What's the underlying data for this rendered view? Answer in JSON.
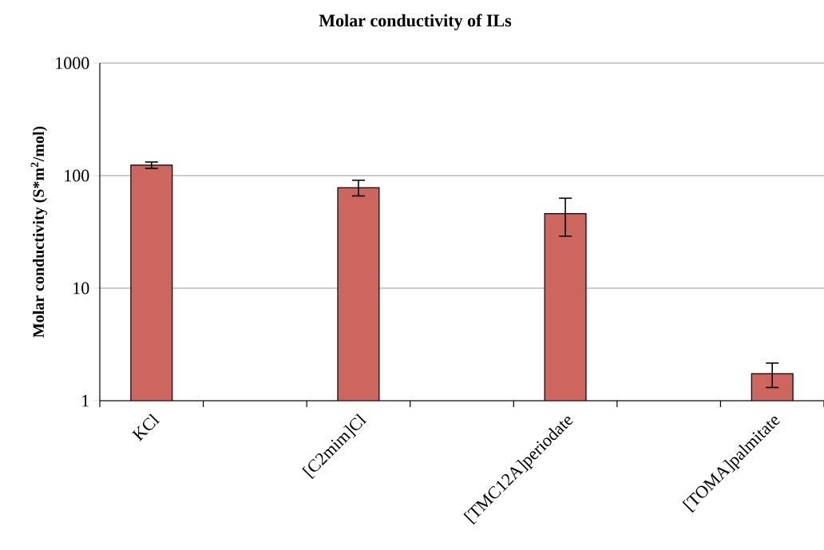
{
  "chart_data": {
    "type": "bar",
    "title": "Molar conductivity of ILs",
    "ylabel": "Molar conductivity (S*m$^{2}$/mol)",
    "categories": [
      "KCl",
      null,
      "[C2mim]Cl",
      null,
      "[TMC12A]periodate",
      null,
      "[TOMA]palmitate"
    ],
    "values": [
      124,
      null,
      78,
      null,
      46,
      null,
      1.74
    ],
    "errors": [
      [
        116,
        132
      ],
      null,
      [
        66,
        91
      ],
      null,
      [
        29,
        63
      ],
      null,
      [
        1.31,
        2.16
      ]
    ],
    "color": "#cd665f",
    "log": "y",
    "ylim": [
      1,
      1000
    ],
    "yticks": [
      1,
      10,
      100,
      1000
    ],
    "grid": "y"
  }
}
